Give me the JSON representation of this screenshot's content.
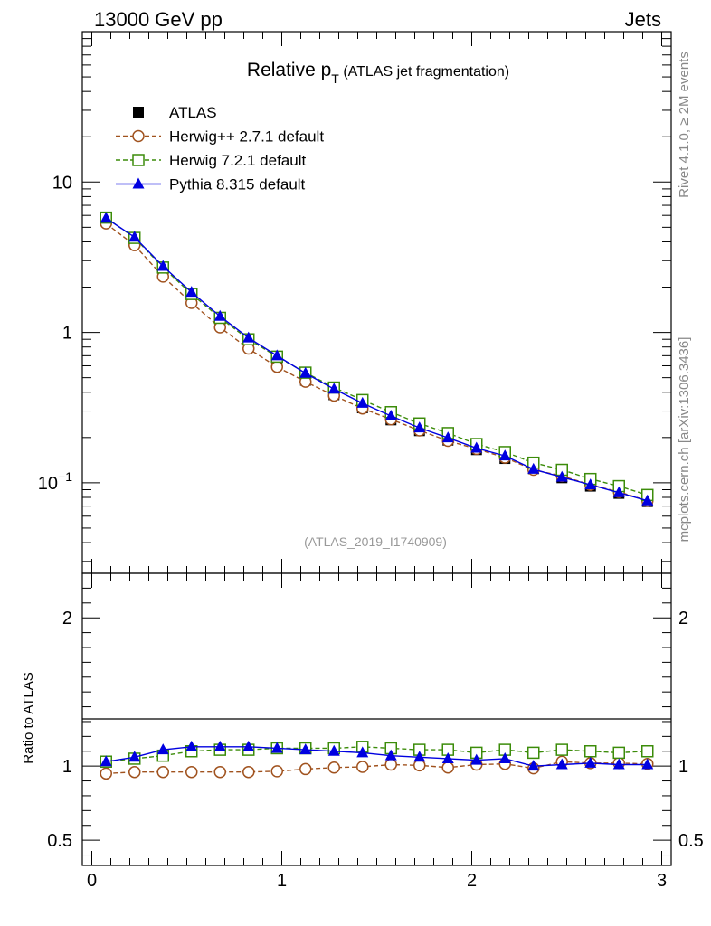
{
  "header": {
    "left": "13000 GeV pp",
    "right": "Jets"
  },
  "side": {
    "rivet": "Rivet 4.1.0, ≥ 2M events",
    "mcplots": "mcplots.cern.ch [arXiv:1306.3436]"
  },
  "colors": {
    "atlas": "#000000",
    "herwigpp": "#a0521e",
    "herwig7": "#3c8c0a",
    "pythia": "#0000e0"
  },
  "chart_data": {
    "type": "line",
    "title_main": "Relative p",
    "title_sub": "T",
    "title_extra": "(ATLAS jet fragmentation)",
    "watermark": "(ATLAS_2019_I1740909)",
    "ratio_ylabel": "Ratio to ATLAS",
    "yscale_top": "log",
    "xlim": [
      -0.05,
      3.05
    ],
    "ylim_top": [
      0.025,
      100
    ],
    "ylim_ratio": [
      0.33,
      2.3
    ],
    "x_ticks": [
      "0",
      "1",
      "2",
      "3"
    ],
    "x_tick_values": [
      0,
      1,
      2,
      3
    ],
    "y_ticks_top": [
      {
        "value": 10,
        "base": "10",
        "exp": ""
      },
      {
        "value": 1,
        "base": "1",
        "exp": ""
      },
      {
        "value": 0.1,
        "base": "10",
        "exp": "−1"
      }
    ],
    "y_ticks_ratio": [
      {
        "value": 2,
        "label": "2"
      },
      {
        "value": 1,
        "label": "1"
      },
      {
        "value": 0.5,
        "label": "0.5"
      }
    ],
    "x": [
      0.075,
      0.225,
      0.375,
      0.525,
      0.675,
      0.825,
      0.975,
      1.125,
      1.275,
      1.425,
      1.575,
      1.725,
      1.875,
      2.025,
      2.175,
      2.325,
      2.475,
      2.625,
      2.775,
      2.925
    ],
    "series": [
      {
        "name": "ATLAS",
        "key": "atlas",
        "marker": "square-filled",
        "line": "none",
        "values": [
          5.6,
          4.0,
          2.5,
          1.65,
          1.15,
          0.82,
          0.62,
          0.48,
          0.385,
          0.315,
          0.262,
          0.222,
          0.192,
          0.166,
          0.145,
          0.124,
          0.108,
          0.095,
          0.085,
          0.075
        ],
        "ratio": [
          1,
          1,
          1,
          1,
          1,
          1,
          1,
          1,
          1,
          1,
          1,
          1,
          1,
          1,
          1,
          1,
          1,
          1,
          1,
          1
        ]
      },
      {
        "name": "Herwig++ 2.7.1 default",
        "key": "herwigpp",
        "marker": "circle-open",
        "line": "dashed",
        "values": [
          5.3,
          3.8,
          2.35,
          1.57,
          1.08,
          0.78,
          0.59,
          0.47,
          0.38,
          0.312,
          0.264,
          0.223,
          0.19,
          0.168,
          0.147,
          0.122,
          0.111,
          0.097,
          0.087,
          0.076
        ],
        "ratio": [
          0.95,
          0.96,
          0.96,
          0.96,
          0.96,
          0.96,
          0.965,
          0.98,
          0.99,
          0.995,
          1.01,
          1.005,
          0.99,
          1.01,
          1.015,
          0.985,
          1.03,
          1.02,
          1.02,
          1.015
        ]
      },
      {
        "name": "Herwig 7.2.1 default",
        "key": "herwig7",
        "marker": "square-open",
        "line": "dashed",
        "values": [
          5.8,
          4.25,
          2.7,
          1.8,
          1.25,
          0.9,
          0.69,
          0.54,
          0.43,
          0.355,
          0.295,
          0.248,
          0.214,
          0.181,
          0.16,
          0.136,
          0.122,
          0.106,
          0.095,
          0.083
        ],
        "ratio": [
          1.03,
          1.05,
          1.07,
          1.1,
          1.11,
          1.11,
          1.12,
          1.12,
          1.12,
          1.13,
          1.12,
          1.11,
          1.11,
          1.09,
          1.11,
          1.09,
          1.11,
          1.1,
          1.09,
          1.1
        ]
      },
      {
        "name": "Pythia 8.315 default",
        "key": "pythia",
        "marker": "triangle-filled",
        "line": "solid",
        "values": [
          5.75,
          4.3,
          2.75,
          1.85,
          1.28,
          0.92,
          0.7,
          0.535,
          0.42,
          0.338,
          0.278,
          0.232,
          0.199,
          0.17,
          0.151,
          0.123,
          0.109,
          0.097,
          0.086,
          0.076
        ],
        "ratio": [
          1.03,
          1.06,
          1.11,
          1.13,
          1.13,
          1.13,
          1.12,
          1.11,
          1.1,
          1.09,
          1.07,
          1.06,
          1.05,
          1.04,
          1.05,
          1.0,
          1.01,
          1.02,
          1.01,
          1.01
        ]
      }
    ]
  }
}
